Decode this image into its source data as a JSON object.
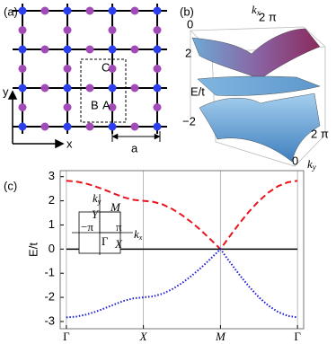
{
  "figure": {
    "a": {
      "label": "(a)",
      "sites": [
        "A",
        "B",
        "C"
      ],
      "x_axis": "x",
      "y_axis": "y",
      "lattice_constant": "a"
    },
    "b": {
      "label": "(b)",
      "kx": {
        "symbol": "k",
        "subscript": "x"
      },
      "ky": {
        "symbol": "k",
        "subscript": "y"
      },
      "kx_ticks": [
        "0",
        "2 π"
      ],
      "ky_ticks": [
        "2 π",
        "0"
      ],
      "e_ticks": [
        "2",
        "−2"
      ],
      "e_label": "E/t"
    },
    "c": {
      "label": "(c)",
      "inset": {
        "ky": {
          "symbol": "k",
          "subscript": "y"
        },
        "kx": {
          "symbol": "k",
          "subscript": "x"
        },
        "M": "M",
        "Y": "Y",
        "X": "X",
        "Gamma": "Γ",
        "pi_x": "π",
        "minus_pi": "−π"
      },
      "chart_data": {
        "type": "line",
        "y_label": "E/t",
        "x": [
          0,
          0.125,
          0.25,
          0.375,
          0.5,
          0.625,
          0.75,
          0.875,
          1,
          1.125,
          1.25,
          1.375,
          1.5,
          1.625,
          1.75,
          1.875,
          2,
          2.125,
          2.25,
          2.375,
          2.5,
          2.625,
          2.75,
          2.875,
          3
        ],
        "series": [
          {
            "color": "#e8141e",
            "style": "dashed",
            "values": [
              2.83,
              2.8,
              2.72,
              2.6,
              2.45,
              2.29,
              2.14,
              2.04,
              2.0,
              1.96,
              1.85,
              1.66,
              1.41,
              1.11,
              0.77,
              0.39,
              0,
              0.55,
              1.08,
              1.57,
              2.0,
              2.35,
              2.61,
              2.77,
              2.83
            ]
          },
          {
            "color": "#000000",
            "style": "solid",
            "values": [
              0,
              0,
              0,
              0,
              0,
              0,
              0,
              0,
              0,
              0,
              0,
              0,
              0,
              0,
              0,
              0,
              0,
              0,
              0,
              0,
              0,
              0,
              0,
              0,
              0
            ]
          },
          {
            "color": "#1a1ad6",
            "style": "dotted",
            "values": [
              -2.83,
              -2.8,
              -2.72,
              -2.6,
              -2.45,
              -2.29,
              -2.14,
              -2.04,
              -2.0,
              -1.96,
              -1.85,
              -1.66,
              -1.41,
              -1.11,
              -0.77,
              -0.39,
              0,
              -0.55,
              -1.08,
              -1.57,
              -2.0,
              -2.35,
              -2.61,
              -2.77,
              -2.83
            ]
          }
        ],
        "xlim": [
          -0.08,
          3.08
        ],
        "ylim": [
          -3.3,
          3.25
        ],
        "xticks": [
          {
            "value": 0,
            "label": "Γ"
          },
          {
            "value": 1,
            "label": "X"
          },
          {
            "value": 2,
            "label": "M"
          },
          {
            "value": 3,
            "label": "Γ"
          }
        ],
        "yticks": [
          -3,
          -2,
          -1,
          0,
          1,
          2,
          3
        ],
        "xgrid": true
      }
    }
  }
}
